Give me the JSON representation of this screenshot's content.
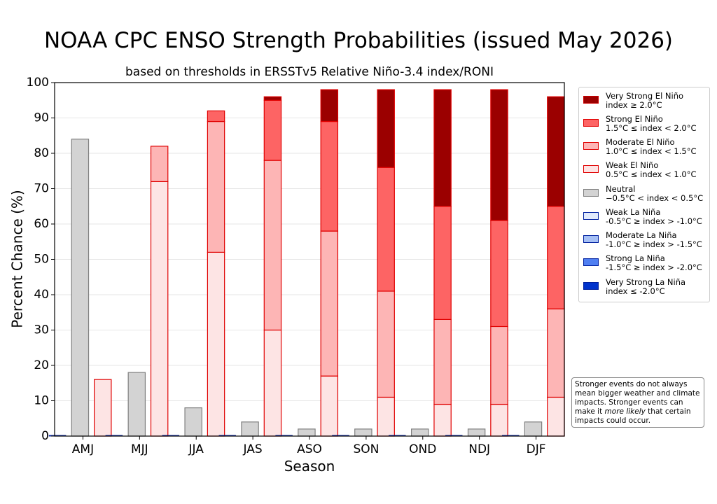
{
  "chart_data": {
    "type": "bar",
    "title": "NOAA CPC ENSO Strength Probabilities (issued May 2026)",
    "subtitle": "based on thresholds in ERSSTv5 Relative Niño-3.4 index/RONI",
    "xlabel": "Season",
    "ylabel": "Percent Chance (%)",
    "ylim": [
      0,
      100
    ],
    "yticks": [
      "0",
      "10",
      "20",
      "30",
      "40",
      "50",
      "60",
      "70",
      "80",
      "90",
      "100"
    ],
    "categories": [
      "AMJ",
      "MJJ",
      "JJA",
      "JAS",
      "ASO",
      "SON",
      "OND",
      "NDJ",
      "DJF"
    ],
    "grid": "horizontal",
    "legend_position": "right",
    "series": [
      {
        "name": "Very Strong La Niña",
        "group": "la_nina",
        "color": "#0033cc",
        "edge": "#00209f",
        "values": [
          0,
          0,
          0,
          0,
          0,
          0,
          0,
          0,
          0
        ]
      },
      {
        "name": "Strong La Niña",
        "group": "la_nina",
        "color": "#4f7ff2",
        "edge": "#00209f",
        "values": [
          0,
          0,
          0,
          0,
          0,
          0,
          0,
          0,
          0
        ]
      },
      {
        "name": "Moderate La Niña",
        "group": "la_nina",
        "color": "#a6c0f5",
        "edge": "#00209f",
        "values": [
          0,
          0,
          0,
          0,
          0,
          0,
          0,
          0,
          0
        ]
      },
      {
        "name": "Weak La Niña",
        "group": "la_nina",
        "color": "#e1eafc",
        "edge": "#00209f",
        "values": [
          0,
          0,
          0,
          0,
          0,
          0,
          0,
          0,
          0
        ]
      },
      {
        "name": "Neutral",
        "group": "neutral",
        "color": "#d3d3d3",
        "edge": "#808080",
        "values": [
          84,
          18,
          8,
          4,
          2,
          2,
          2,
          2,
          4
        ]
      },
      {
        "name": "Weak El Niño",
        "group": "el_nino",
        "color": "#fde4e4",
        "edge": "#e00000",
        "values": [
          16,
          72,
          52,
          30,
          17,
          11,
          9,
          9,
          11
        ]
      },
      {
        "name": "Moderate El Niño",
        "group": "el_nino",
        "color": "#fdb5b5",
        "edge": "#e00000",
        "values": [
          0,
          10,
          37,
          48,
          41,
          30,
          24,
          22,
          25
        ]
      },
      {
        "name": "Strong El Niño",
        "group": "el_nino",
        "color": "#fd6464",
        "edge": "#e00000",
        "values": [
          0,
          0,
          3,
          17,
          31,
          35,
          32,
          30,
          29
        ]
      },
      {
        "name": "Very Strong El Niño",
        "group": "el_nino",
        "color": "#9b0000",
        "edge": "#e00000",
        "values": [
          0,
          0,
          0,
          1,
          9,
          22,
          33,
          37,
          31
        ]
      }
    ]
  },
  "legend": [
    {
      "line1": "Very Strong El Niño",
      "line2": "index ≥ 2.0°C",
      "color": "#9b0000",
      "edge": "#cc0000"
    },
    {
      "line1": "Strong El Niño",
      "line2": "1.5°C ≤ index < 2.0°C",
      "color": "#fd6464",
      "edge": "#e00000"
    },
    {
      "line1": "Moderate El Niño",
      "line2": "1.0°C ≤ index < 1.5°C",
      "color": "#fdb5b5",
      "edge": "#e00000"
    },
    {
      "line1": "Weak El Niño",
      "line2": "0.5°C ≤ index < 1.0°C",
      "color": "#fde4e4",
      "edge": "#e00000"
    },
    {
      "line1": "Neutral",
      "line2": "−0.5°C < index < 0.5°C",
      "color": "#d3d3d3",
      "edge": "#808080"
    },
    {
      "line1": "Weak La Niña",
      "line2": "-0.5°C ≥ index > -1.0°C",
      "color": "#e1eafc",
      "edge": "#00209f"
    },
    {
      "line1": "Moderate La Niña",
      "line2": "-1.0°C ≥ index > -1.5°C",
      "color": "#a6c0f5",
      "edge": "#00209f"
    },
    {
      "line1": "Strong La Niña",
      "line2": "-1.5°C ≥ index > -2.0°C",
      "color": "#4f7ff2",
      "edge": "#00209f"
    },
    {
      "line1": "Very Strong La Niña",
      "line2": "index ≤ -2.0°C",
      "color": "#0033cc",
      "edge": "#00209f"
    }
  ],
  "note": {
    "line1": "Stronger events do not always",
    "line2": "mean bigger weather and climate",
    "line3": "impacts. Stronger events can",
    "line4_pre": "make it ",
    "line4_em": "more likely",
    "line4_post": " that certain",
    "line5": "impacts could occur."
  }
}
